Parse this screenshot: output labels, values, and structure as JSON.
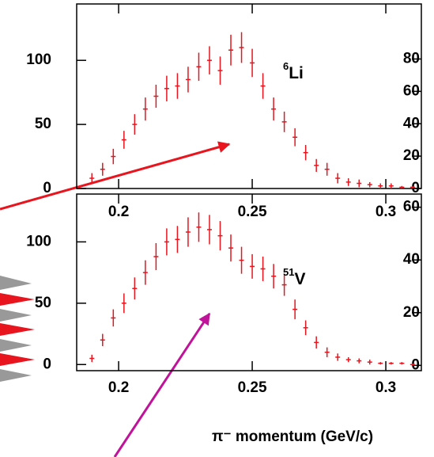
{
  "chart_data": [
    {
      "type": "scatter",
      "color": "#e8141e",
      "annotation_mass": "6",
      "annotation_element": "Li",
      "x": [
        0.19,
        0.194,
        0.198,
        0.202,
        0.206,
        0.21,
        0.214,
        0.218,
        0.222,
        0.226,
        0.23,
        0.234,
        0.238,
        0.242,
        0.246,
        0.25,
        0.254,
        0.258,
        0.262,
        0.266,
        0.27,
        0.274,
        0.278,
        0.282,
        0.286,
        0.29,
        0.294,
        0.298,
        0.302,
        0.306,
        0.31
      ],
      "values": [
        8,
        15,
        25,
        38,
        50,
        62,
        72,
        78,
        80,
        85,
        95,
        100,
        92,
        108,
        110,
        98,
        80,
        62,
        52,
        40,
        28,
        18,
        15,
        8,
        5,
        4,
        3,
        2,
        2,
        1,
        1
      ],
      "errors": [
        4,
        5,
        6,
        7,
        8,
        9,
        9,
        10,
        10,
        10,
        11,
        11,
        11,
        12,
        12,
        11,
        10,
        9,
        8,
        7,
        6,
        5,
        5,
        4,
        3,
        3,
        2,
        2,
        2,
        1,
        1
      ],
      "xlim": [
        0.1843,
        0.3133
      ],
      "xticks": [
        0.2,
        0.25,
        0.3
      ],
      "ylim": [
        0,
        144
      ],
      "yticks": [
        0,
        50,
        100
      ],
      "y2lim": [
        0,
        114
      ],
      "y2ticks": [
        0,
        20,
        40,
        60,
        80
      ]
    },
    {
      "type": "scatter",
      "color": "#e8141e",
      "annotation_mass": "51",
      "annotation_element": "V",
      "x_label": "π⁻ momentum (GeV/c)",
      "x": [
        0.19,
        0.194,
        0.198,
        0.202,
        0.206,
        0.21,
        0.214,
        0.218,
        0.222,
        0.226,
        0.23,
        0.234,
        0.238,
        0.242,
        0.246,
        0.25,
        0.254,
        0.258,
        0.262,
        0.266,
        0.27,
        0.274,
        0.278,
        0.282,
        0.286,
        0.29,
        0.294,
        0.298,
        0.302,
        0.306,
        0.31
      ],
      "values": [
        5,
        20,
        38,
        50,
        62,
        75,
        88,
        100,
        102,
        108,
        112,
        110,
        105,
        95,
        85,
        80,
        78,
        72,
        65,
        45,
        30,
        18,
        10,
        6,
        4,
        3,
        2,
        1,
        1,
        1,
        0
      ],
      "errors": [
        3,
        5,
        7,
        8,
        9,
        10,
        11,
        11,
        11,
        12,
        12,
        12,
        12,
        11,
        11,
        10,
        10,
        10,
        9,
        8,
        6,
        5,
        4,
        3,
        2,
        2,
        2,
        1,
        1,
        1,
        1
      ],
      "xlim": [
        0.1843,
        0.3133
      ],
      "xticks": [
        0.2,
        0.25,
        0.3
      ],
      "ylim": [
        -5,
        139
      ],
      "yticks": [
        0,
        50,
        100
      ],
      "y2lim": [
        -2,
        65
      ],
      "y2ticks": [
        0,
        20,
        40,
        60
      ]
    }
  ]
}
